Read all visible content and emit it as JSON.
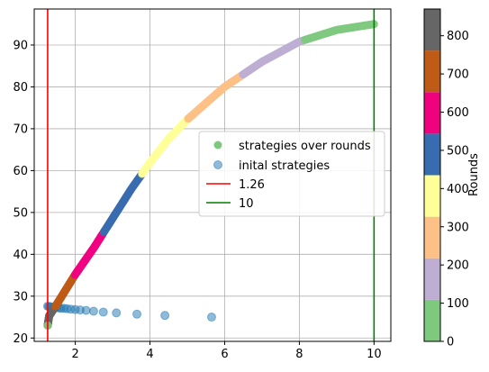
{
  "chart_data": {
    "type": "scatter",
    "title": "",
    "xlabel": "",
    "ylabel": "",
    "xlim": [
      0.9,
      10.45
    ],
    "ylim": [
      19.2,
      98.6
    ],
    "xticks": [
      2,
      4,
      6,
      8,
      10
    ],
    "yticks": [
      20,
      30,
      40,
      50,
      60,
      70,
      80,
      90
    ],
    "grid": true,
    "legend_position": "center-right",
    "curve": {
      "name": "strategies over rounds",
      "color_by": "round",
      "rounds_range": [
        0,
        870
      ],
      "points": [
        [
          1.26,
          23.0
        ],
        [
          1.3,
          25.3
        ],
        [
          1.5,
          28.0
        ],
        [
          2.0,
          35.2
        ],
        [
          2.5,
          41.6
        ],
        [
          3.0,
          48.6
        ],
        [
          3.5,
          55.6
        ],
        [
          4.0,
          61.9
        ],
        [
          4.5,
          67.6
        ],
        [
          5.0,
          72.2
        ],
        [
          5.7,
          77.7
        ],
        [
          6.0,
          80.0
        ],
        [
          7.0,
          86.0
        ],
        [
          8.0,
          90.8
        ],
        [
          9.0,
          93.6
        ],
        [
          10.0,
          95.0
        ]
      ]
    },
    "series": [
      {
        "name": "inital strategies",
        "color": "#1f77b4",
        "x": [
          1.26,
          1.29,
          1.32,
          1.36,
          1.4,
          1.45,
          1.5,
          1.56,
          1.62,
          1.7,
          1.78,
          1.88,
          2.0,
          2.13,
          2.29,
          2.49,
          2.75,
          3.1,
          3.65,
          4.4,
          5.65
        ],
        "y": [
          27.6,
          27.5,
          27.5,
          27.4,
          27.4,
          27.3,
          27.3,
          27.2,
          27.1,
          27.1,
          27.0,
          26.9,
          26.8,
          26.7,
          26.6,
          26.4,
          26.2,
          26.0,
          25.7,
          25.4,
          25.0
        ]
      }
    ],
    "reference_lines": [
      {
        "name": "1.26",
        "x": 1.26,
        "color": "#ff0000"
      },
      {
        "name": "10",
        "x": 10,
        "color": "#008000"
      }
    ],
    "legend": [
      {
        "label": "strategies over rounds",
        "kind": "dot",
        "color": "#7fc97f"
      },
      {
        "label": "inital strategies",
        "kind": "dot",
        "color": "#1f77b4"
      },
      {
        "label": "1.26",
        "kind": "line",
        "color": "#ff0000"
      },
      {
        "label": "10",
        "kind": "line",
        "color": "#008000"
      }
    ],
    "colorbar": {
      "label": "Rounds",
      "min": 0,
      "max": 870,
      "ticks": [
        0,
        100,
        200,
        300,
        400,
        500,
        600,
        700,
        800
      ],
      "colors": [
        "#7fc97f",
        "#beaed4",
        "#fdc086",
        "#ffff99",
        "#386cb0",
        "#f0027f",
        "#bf5b17",
        "#666666"
      ]
    }
  }
}
